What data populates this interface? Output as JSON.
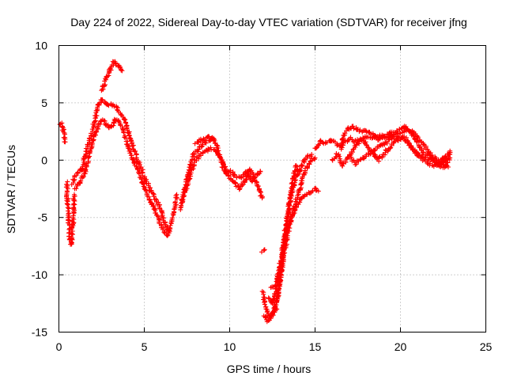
{
  "chart_data": {
    "type": "scatter",
    "title": "Day 224 of 2022, Sidereal Day-to-day VTEC variation (SDTVAR) for receiver jfng",
    "xlabel": "GPS time / hours",
    "ylabel": "SDTVAR / TECUs",
    "xlim": [
      0,
      25
    ],
    "ylim": [
      -15,
      10
    ],
    "grid": true,
    "marker": "plus",
    "marker_color": "#ff0000",
    "x_ticks": [
      0,
      5,
      10,
      15,
      20,
      25
    ],
    "x_tick_labels": [
      "0",
      "5",
      "10",
      "15",
      "20",
      "25"
    ],
    "y_ticks": [
      -15,
      -10,
      -5,
      0,
      5,
      10
    ],
    "y_tick_labels": [
      "-15",
      "-10",
      "-5",
      "0",
      "5",
      "10"
    ],
    "series": [
      {
        "name": "SDTVAR",
        "tracks": [
          [
            [
              0.1,
              3.2
            ],
            [
              0.2,
              2.9
            ],
            [
              0.3,
              2.2
            ],
            [
              0.32,
              1.6
            ]
          ],
          [
            [
              0.45,
              -2.0
            ],
            [
              0.5,
              -3.5
            ],
            [
              0.55,
              -4.5
            ],
            [
              0.6,
              -5.8
            ],
            [
              0.65,
              -7.0
            ],
            [
              0.7,
              -7.4
            ],
            [
              0.78,
              -6.5
            ],
            [
              0.85,
              -4.5
            ],
            [
              0.9,
              -3.0
            ]
          ],
          [
            [
              0.8,
              -2.0
            ],
            [
              1.0,
              -1.3
            ],
            [
              1.2,
              -1.0
            ],
            [
              1.4,
              -0.7
            ],
            [
              1.5,
              0.2
            ],
            [
              1.7,
              1.2
            ],
            [
              1.9,
              2.2
            ],
            [
              2.1,
              3.5
            ],
            [
              2.3,
              4.8
            ],
            [
              2.5,
              5.3
            ],
            [
              2.7,
              5.0
            ],
            [
              2.9,
              4.8
            ],
            [
              3.1,
              4.9
            ],
            [
              3.3,
              4.7
            ],
            [
              3.5,
              4.2
            ],
            [
              3.8,
              3.6
            ],
            [
              4.0,
              2.8
            ],
            [
              4.2,
              2.0
            ],
            [
              4.4,
              1.0
            ],
            [
              4.6,
              0.0
            ],
            [
              4.8,
              -0.6
            ],
            [
              5.0,
              -1.5
            ],
            [
              5.2,
              -2.0
            ],
            [
              5.4,
              -2.8
            ],
            [
              5.6,
              -3.2
            ],
            [
              5.8,
              -3.8
            ],
            [
              6.0,
              -4.5
            ],
            [
              6.2,
              -5.5
            ],
            [
              6.4,
              -6.2
            ],
            [
              6.6,
              -5.5
            ],
            [
              6.8,
              -4.2
            ],
            [
              6.9,
              -3.0
            ]
          ],
          [
            [
              0.95,
              -2.5
            ],
            [
              1.2,
              -2.0
            ],
            [
              1.5,
              -1.2
            ],
            [
              1.7,
              0.0
            ],
            [
              1.9,
              1.2
            ],
            [
              2.1,
              2.2
            ],
            [
              2.3,
              3.0
            ],
            [
              2.5,
              3.5
            ],
            [
              2.7,
              3.3
            ],
            [
              2.9,
              2.8
            ],
            [
              3.1,
              2.9
            ],
            [
              3.3,
              3.6
            ],
            [
              3.5,
              3.5
            ],
            [
              3.7,
              2.8
            ],
            [
              3.9,
              2.0
            ],
            [
              4.1,
              1.0
            ],
            [
              4.3,
              0.3
            ],
            [
              4.5,
              -0.5
            ],
            [
              4.7,
              -1.2
            ],
            [
              4.9,
              -2.0
            ],
            [
              5.1,
              -2.8
            ],
            [
              5.3,
              -3.5
            ],
            [
              5.5,
              -4.0
            ],
            [
              5.7,
              -4.6
            ],
            [
              5.9,
              -5.3
            ],
            [
              6.1,
              -6.0
            ],
            [
              6.3,
              -6.5
            ],
            [
              6.5,
              -6.2
            ]
          ],
          [
            [
              2.5,
              6.0
            ],
            [
              2.7,
              6.8
            ],
            [
              2.9,
              7.6
            ],
            [
              3.1,
              8.2
            ],
            [
              3.2,
              8.6
            ],
            [
              3.4,
              8.4
            ],
            [
              3.6,
              8.0
            ],
            [
              3.7,
              7.8
            ]
          ],
          [
            [
              7.1,
              -4.2
            ],
            [
              7.3,
              -3.0
            ],
            [
              7.5,
              -1.5
            ],
            [
              7.7,
              -0.5
            ],
            [
              7.9,
              0.5
            ],
            [
              8.1,
              0.8
            ],
            [
              8.3,
              1.2
            ],
            [
              8.5,
              1.5
            ],
            [
              8.8,
              1.7
            ],
            [
              9.0,
              2.0
            ],
            [
              9.2,
              1.5
            ],
            [
              9.4,
              0.5
            ],
            [
              9.6,
              -0.5
            ],
            [
              9.8,
              -1.2
            ],
            [
              10.0,
              -1.5
            ],
            [
              10.2,
              -1.8
            ],
            [
              10.4,
              -2.2
            ],
            [
              10.6,
              -2.5
            ],
            [
              10.8,
              -2.0
            ],
            [
              11.0,
              -1.5
            ],
            [
              11.2,
              -0.8
            ],
            [
              11.4,
              -1.5
            ],
            [
              11.6,
              -2.2
            ],
            [
              11.8,
              -2.8
            ],
            [
              11.9,
              -3.3
            ]
          ],
          [
            [
              7.2,
              -3.5
            ],
            [
              7.5,
              -2.2
            ],
            [
              7.8,
              -0.8
            ],
            [
              8.0,
              0.0
            ],
            [
              8.3,
              0.5
            ],
            [
              8.6,
              0.8
            ],
            [
              8.9,
              1.0
            ],
            [
              9.2,
              0.8
            ],
            [
              9.5,
              0.0
            ],
            [
              9.8,
              -0.8
            ],
            [
              10.1,
              -1.0
            ],
            [
              10.4,
              -1.5
            ],
            [
              10.7,
              -1.5
            ],
            [
              11.0,
              -1.0
            ],
            [
              11.3,
              -1.8
            ],
            [
              11.6,
              -1.2
            ],
            [
              11.8,
              -1.0
            ]
          ],
          [
            [
              8.0,
              1.5
            ],
            [
              8.4,
              1.8
            ],
            [
              8.8,
              2.0
            ],
            [
              9.1,
              1.8
            ]
          ],
          [
            [
              11.9,
              -8.0
            ],
            [
              12.05,
              -7.8
            ]
          ],
          [
            [
              11.95,
              -11.5
            ],
            [
              12.1,
              -12.8
            ],
            [
              12.3,
              -13.5
            ],
            [
              12.5,
              -13.5
            ],
            [
              12.7,
              -13.0
            ],
            [
              12.9,
              -11.0
            ],
            [
              13.1,
              -8.5
            ],
            [
              13.3,
              -6.0
            ],
            [
              13.5,
              -3.8
            ],
            [
              13.7,
              -1.8
            ],
            [
              13.9,
              -0.5
            ],
            [
              14.1,
              -1.0
            ]
          ],
          [
            [
              12.0,
              -13.5
            ],
            [
              12.2,
              -14.0
            ],
            [
              12.4,
              -13.8
            ],
            [
              12.6,
              -13.0
            ],
            [
              12.8,
              -12.0
            ],
            [
              13.0,
              -10.0
            ],
            [
              13.2,
              -8.0
            ],
            [
              13.4,
              -6.5
            ],
            [
              13.6,
              -5.0
            ],
            [
              13.8,
              -4.0
            ],
            [
              14.0,
              -3.0
            ],
            [
              14.2,
              -2.0
            ],
            [
              14.4,
              -1.0
            ],
            [
              14.6,
              -0.5
            ],
            [
              14.8,
              0.0
            ],
            [
              15.0,
              0.2
            ]
          ],
          [
            [
              12.3,
              -12.0
            ],
            [
              12.5,
              -12.5
            ],
            [
              12.7,
              -11.5
            ],
            [
              12.9,
              -9.5
            ],
            [
              13.1,
              -8.0
            ],
            [
              13.3,
              -6.5
            ],
            [
              13.5,
              -5.5
            ],
            [
              13.8,
              -4.5
            ],
            [
              14.1,
              -3.5
            ],
            [
              14.4,
              -3.0
            ],
            [
              14.7,
              -2.8
            ],
            [
              15.0,
              -2.5
            ],
            [
              15.2,
              -2.7
            ]
          ],
          [
            [
              12.4,
              -11.0
            ],
            [
              12.7,
              -11.0
            ],
            [
              13.0,
              -9.0
            ],
            [
              13.3,
              -5.5
            ],
            [
              13.6,
              -3.0
            ],
            [
              13.9,
              -1.5
            ],
            [
              14.2,
              -0.5
            ],
            [
              14.5,
              0.3
            ],
            [
              14.8,
              0.5
            ]
          ],
          [
            [
              15.0,
              1.0
            ],
            [
              15.3,
              1.7
            ],
            [
              15.6,
              1.5
            ],
            [
              15.9,
              1.8
            ],
            [
              16.2,
              1.5
            ],
            [
              16.5,
              1.2
            ],
            [
              16.8,
              1.6
            ],
            [
              17.1,
              1.9
            ],
            [
              17.4,
              1.6
            ],
            [
              17.7,
              1.9
            ],
            [
              18.0,
              2.0
            ],
            [
              18.3,
              1.8
            ],
            [
              18.6,
              2.0
            ],
            [
              18.9,
              2.2
            ],
            [
              19.2,
              2.0
            ],
            [
              19.5,
              2.1
            ],
            [
              19.8,
              2.2
            ],
            [
              20.1,
              2.5
            ],
            [
              20.4,
              2.7
            ],
            [
              20.7,
              2.5
            ],
            [
              21.0,
              2.0
            ],
            [
              21.3,
              1.5
            ],
            [
              21.6,
              0.8
            ],
            [
              21.9,
              0.3
            ],
            [
              22.2,
              0.0
            ],
            [
              22.5,
              -0.3
            ],
            [
              22.8,
              -0.6
            ]
          ],
          [
            [
              16.5,
              1.0
            ],
            [
              16.7,
              2.3
            ],
            [
              16.9,
              2.7
            ],
            [
              17.2,
              2.9
            ],
            [
              17.5,
              2.7
            ],
            [
              17.8,
              2.5
            ],
            [
              18.1,
              2.5
            ],
            [
              18.4,
              2.2
            ],
            [
              18.7,
              1.8
            ],
            [
              19.0,
              2.0
            ],
            [
              19.3,
              2.3
            ],
            [
              19.6,
              2.4
            ],
            [
              19.9,
              2.7
            ],
            [
              20.2,
              3.0
            ],
            [
              20.5,
              2.6
            ],
            [
              20.8,
              2.0
            ],
            [
              21.1,
              1.2
            ],
            [
              21.4,
              0.6
            ],
            [
              21.7,
              0.4
            ],
            [
              22.0,
              0.0
            ],
            [
              22.3,
              -0.5
            ],
            [
              22.6,
              -0.6
            ],
            [
              22.9,
              0.2
            ]
          ],
          [
            [
              16.0,
              0.0
            ],
            [
              16.3,
              0.5
            ],
            [
              16.6,
              -0.5
            ],
            [
              16.9,
              0.2
            ],
            [
              17.2,
              0.8
            ],
            [
              17.5,
              1.5
            ],
            [
              17.8,
              1.8
            ],
            [
              18.1,
              1.2
            ],
            [
              18.4,
              0.5
            ],
            [
              18.7,
              0.0
            ],
            [
              19.0,
              0.5
            ],
            [
              19.3,
              1.0
            ],
            [
              19.6,
              1.5
            ],
            [
              19.9,
              1.8
            ],
            [
              20.2,
              2.0
            ],
            [
              20.5,
              1.5
            ],
            [
              20.8,
              0.8
            ],
            [
              21.1,
              0.3
            ],
            [
              21.4,
              0.0
            ],
            [
              21.7,
              -0.3
            ],
            [
              22.0,
              -0.5
            ],
            [
              22.3,
              -0.2
            ],
            [
              22.6,
              0.3
            ],
            [
              22.9,
              0.8
            ]
          ],
          [
            [
              17.0,
              0.3
            ],
            [
              17.4,
              -0.3
            ],
            [
              17.8,
              0.2
            ],
            [
              18.2,
              0.6
            ],
            [
              18.6,
              1.1
            ],
            [
              19.0,
              1.4
            ],
            [
              19.4,
              1.8
            ],
            [
              19.8,
              2.0
            ],
            [
              20.2,
              1.8
            ],
            [
              20.6,
              1.2
            ],
            [
              21.0,
              0.6
            ],
            [
              21.4,
              0.2
            ],
            [
              21.8,
              0.0
            ],
            [
              22.2,
              -0.4
            ],
            [
              22.6,
              -0.1
            ],
            [
              22.9,
              0.5
            ]
          ]
        ]
      }
    ]
  }
}
